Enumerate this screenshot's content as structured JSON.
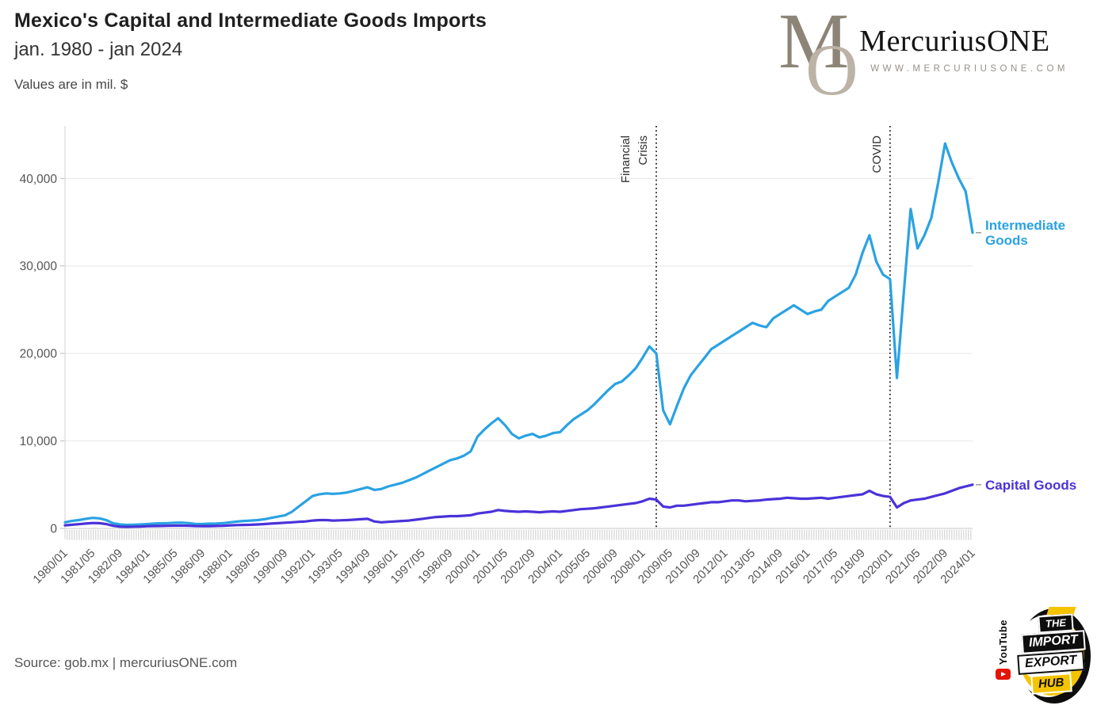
{
  "header": {
    "title": "Mexico's Capital and Intermediate Goods Imports",
    "subtitle": "jan. 1980 - jan 2024",
    "units_note": "Values are in mil. $"
  },
  "brand": {
    "monogram_m": "M",
    "monogram_o": "O",
    "name": "MercuriusONE",
    "website": "WWW.MERCURIUSONE.COM"
  },
  "footer": {
    "source": "Source: gob.mx | mercuriusONE.com"
  },
  "hub_logo": {
    "youtube": "YouTube",
    "line1": "THE",
    "line2": "IMPORT",
    "line3": "EXPORT",
    "line4": "HUB",
    "accent_yellow": "#f5c400",
    "youtube_red": "#e21507"
  },
  "chart_data": {
    "type": "line",
    "title": "Mexico's Capital and Intermediate Goods Imports",
    "x_start": "1980/01",
    "x_end": "2024/01",
    "total_months": 528,
    "sample_interval_months": 4,
    "x_tick_interval_months": 16,
    "x_tick_labels": [
      "1980/01",
      "1981/05",
      "1982/09",
      "1984/01",
      "1985/05",
      "1986/09",
      "1988/01",
      "1989/05",
      "1990/09",
      "1992/01",
      "1993/05",
      "1994/09",
      "1996/01",
      "1997/05",
      "1998/09",
      "2000/01",
      "2001/05",
      "2002/09",
      "2004/01",
      "2005/05",
      "2006/09",
      "2008/01",
      "2009/05",
      "2010/09",
      "2012/01",
      "2013/05",
      "2014/09",
      "2016/01",
      "2017/05",
      "2018/09",
      "2020/01",
      "2021/05",
      "2022/09",
      "2024/01"
    ],
    "y_ticks": [
      0,
      10000,
      20000,
      30000,
      40000
    ],
    "ylim": [
      0,
      46000
    ],
    "grid": "horizontal",
    "legend_position": "right-of-line-ends",
    "annotations": [
      {
        "label": "Financial Crisis",
        "lines": [
          "Financial",
          "Crisis"
        ],
        "month": 344,
        "style": "dotted-vertical"
      },
      {
        "label": "COVID",
        "lines": [
          "COVID"
        ],
        "month": 480,
        "style": "dotted-vertical"
      }
    ],
    "series": [
      {
        "name": "Intermediate Goods",
        "label_lines": [
          "Intermediate",
          "Goods"
        ],
        "color": "#2aa2e3",
        "values": [
          700,
          850,
          950,
          1100,
          1200,
          1150,
          950,
          600,
          450,
          400,
          420,
          450,
          500,
          550,
          580,
          600,
          640,
          660,
          600,
          520,
          500,
          540,
          560,
          600,
          700,
          780,
          850,
          900,
          950,
          1050,
          1200,
          1350,
          1500,
          1900,
          2500,
          3100,
          3700,
          3900,
          4000,
          3950,
          4000,
          4100,
          4300,
          4500,
          4700,
          4400,
          4500,
          4800,
          5000,
          5200,
          5500,
          5800,
          6200,
          6600,
          7000,
          7400,
          7800,
          8000,
          8300,
          8800,
          10500,
          11300,
          12000,
          12600,
          11800,
          10800,
          10300,
          10600,
          10800,
          10400,
          10600,
          10900,
          11000,
          11800,
          12500,
          13000,
          13500,
          14200,
          15000,
          15800,
          16500,
          16800,
          17500,
          18300,
          19500,
          20800,
          20000,
          13500,
          11900,
          14000,
          16000,
          17500,
          18500,
          19500,
          20500,
          21000,
          21500,
          22000,
          22500,
          23000,
          23500,
          23200,
          23000,
          24000,
          24500,
          25000,
          25500,
          25000,
          24500,
          24800,
          25000,
          26000,
          26500,
          27000,
          27500,
          29000,
          31500,
          33500,
          30500,
          29000,
          28500,
          17200,
          27000,
          36500,
          32000,
          33500,
          35500,
          39500,
          44000,
          41800,
          40000,
          38500,
          33800
        ]
      },
      {
        "name": "Capital Goods",
        "label_lines": [
          "Capital Goods"
        ],
        "color": "#4a32d9",
        "values": [
          350,
          420,
          480,
          550,
          620,
          600,
          500,
          300,
          200,
          180,
          200,
          220,
          250,
          270,
          280,
          300,
          320,
          330,
          300,
          270,
          260,
          260,
          280,
          300,
          350,
          380,
          400,
          420,
          450,
          500,
          550,
          600,
          650,
          700,
          750,
          800,
          900,
          950,
          950,
          900,
          920,
          950,
          1000,
          1050,
          1100,
          800,
          700,
          750,
          800,
          850,
          900,
          1000,
          1100,
          1200,
          1300,
          1350,
          1400,
          1400,
          1450,
          1500,
          1700,
          1800,
          1900,
          2100,
          2000,
          1950,
          1900,
          1950,
          1900,
          1850,
          1900,
          1950,
          1900,
          2000,
          2100,
          2200,
          2250,
          2300,
          2400,
          2500,
          2600,
          2700,
          2800,
          2900,
          3100,
          3400,
          3300,
          2500,
          2400,
          2600,
          2600,
          2700,
          2800,
          2900,
          3000,
          3000,
          3100,
          3200,
          3200,
          3100,
          3150,
          3200,
          3300,
          3350,
          3400,
          3500,
          3450,
          3400,
          3400,
          3450,
          3500,
          3400,
          3500,
          3600,
          3700,
          3800,
          3900,
          4300,
          3900,
          3700,
          3600,
          2400,
          2900,
          3200,
          3300,
          3400,
          3600,
          3800,
          4000,
          4300,
          4600,
          4800,
          5000
        ]
      }
    ]
  }
}
